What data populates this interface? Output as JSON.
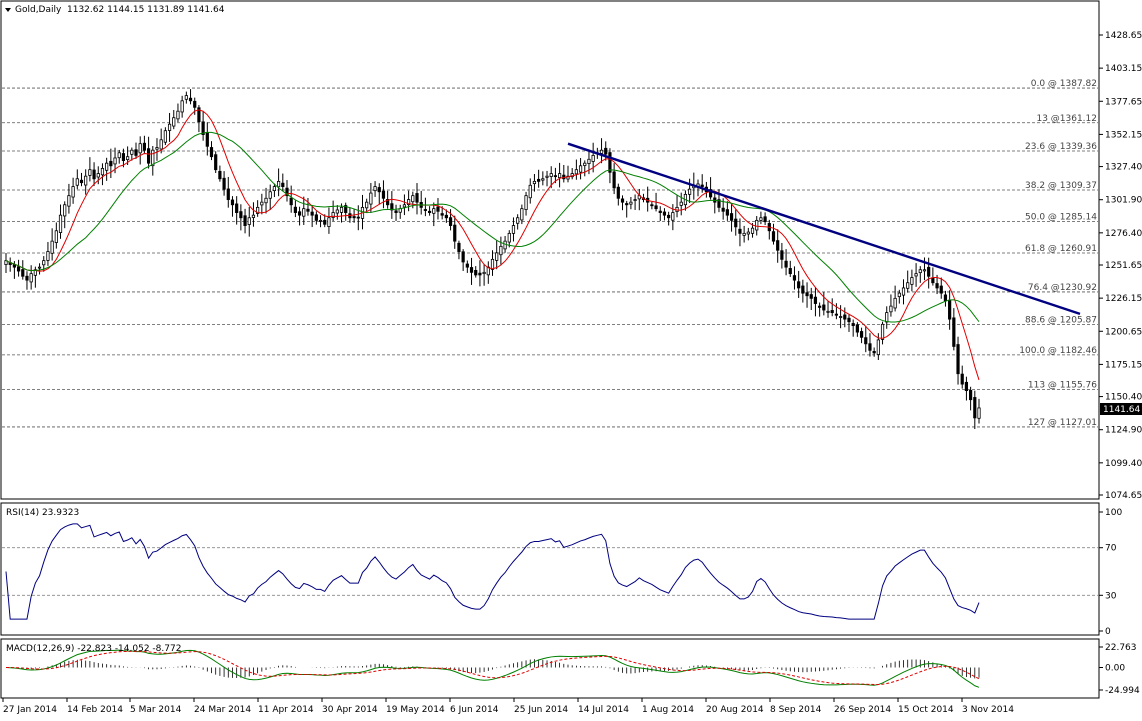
{
  "window": {
    "title": "Gold,Daily",
    "ohlc": "1132.62 1144.15 1131.89 1141.64"
  },
  "chart_data": [
    {
      "type": "candlestick",
      "title": "Gold,Daily",
      "ohlc_last": {
        "open": 1132.62,
        "high": 1144.15,
        "low": 1131.89,
        "close": 1141.64
      },
      "current_price_label": "1141.64",
      "ylim": [
        1070,
        1450
      ],
      "yticks": [
        "1428.65",
        "1403.15",
        "1377.65",
        "1352.15",
        "1327.40",
        "1301.90",
        "1276.40",
        "1251.65",
        "1226.15",
        "1200.65",
        "1175.15",
        "1150.40",
        "1124.90",
        "1099.40",
        "1074.65"
      ],
      "ytick_values": [
        1428.65,
        1403.15,
        1377.65,
        1352.15,
        1327.4,
        1301.9,
        1276.4,
        1251.65,
        1226.15,
        1200.65,
        1175.15,
        1150.4,
        1124.9,
        1099.4,
        1074.65
      ],
      "x_dates": [
        "27 Jan 2014",
        "14 Feb 2014",
        "5 Mar 2014",
        "24 Mar 2014",
        "11 Apr 2014",
        "30 Apr 2014",
        "19 May 2014",
        "6 Jun 2014",
        "25 Jun 2014",
        "14 Jul 2014",
        "1 Aug 2014",
        "20 Aug 2014",
        "8 Sep 2014",
        "26 Sep 2014",
        "15 Oct 2014",
        "3 Nov 2014"
      ],
      "fibonacci_levels": [
        {
          "label": "0.0 @ 1387.82",
          "value": 1387.82
        },
        {
          "label": "13 @1361.12",
          "value": 1361.12
        },
        {
          "label": "23.6 @ 1339.36",
          "value": 1339.36
        },
        {
          "label": "38.2 @ 1309.37",
          "value": 1309.37
        },
        {
          "label": "50.0 @ 1285.14",
          "value": 1285.14
        },
        {
          "label": "61.8 @ 1260.91",
          "value": 1260.91
        },
        {
          "label": "76.4 @1230.92",
          "value": 1230.92
        },
        {
          "label": "88.6 @ 1205.87",
          "value": 1205.87
        },
        {
          "label": "100.0 @ 1182.46",
          "value": 1182.46
        },
        {
          "label": "113 @ 1155.76",
          "value": 1155.76
        },
        {
          "label": "127 @ 1127.01",
          "value": 1127.01
        }
      ],
      "trendline": {
        "from": {
          "date": "10 Jul 2014",
          "value": 1345
        },
        "to": {
          "date": "12 Nov 2014",
          "value": 1214
        }
      },
      "closes": [
        1255,
        1252,
        1250,
        1247,
        1243,
        1240,
        1245,
        1248,
        1250,
        1255,
        1262,
        1270,
        1278,
        1290,
        1298,
        1305,
        1312,
        1318,
        1315,
        1320,
        1325,
        1318,
        1322,
        1326,
        1330,
        1328,
        1334,
        1338,
        1332,
        1335,
        1340,
        1336,
        1345,
        1340,
        1330,
        1340,
        1342,
        1348,
        1355,
        1360,
        1365,
        1370,
        1378,
        1382,
        1378,
        1373,
        1362,
        1352,
        1343,
        1335,
        1325,
        1318,
        1310,
        1302,
        1298,
        1292,
        1288,
        1282,
        1288,
        1290,
        1296,
        1300,
        1303,
        1308,
        1312,
        1316,
        1312,
        1305,
        1298,
        1292,
        1290,
        1295,
        1293,
        1290,
        1286,
        1286,
        1283,
        1288,
        1292,
        1294,
        1296,
        1292,
        1288,
        1288,
        1288,
        1296,
        1300,
        1307,
        1312,
        1308,
        1303,
        1298,
        1294,
        1292,
        1295,
        1298,
        1302,
        1305,
        1300,
        1296,
        1294,
        1292,
        1295,
        1293,
        1290,
        1288,
        1282,
        1270,
        1262,
        1254,
        1250,
        1246,
        1244,
        1244,
        1246,
        1250,
        1256,
        1261,
        1266,
        1270,
        1276,
        1282,
        1288,
        1295,
        1305,
        1313,
        1316,
        1316,
        1318,
        1320,
        1322,
        1320,
        1322,
        1318,
        1320,
        1322,
        1325,
        1328,
        1330,
        1333,
        1336,
        1338,
        1340,
        1337,
        1323,
        1311,
        1303,
        1300,
        1298,
        1300,
        1302,
        1305,
        1302,
        1300,
        1298,
        1295,
        1292,
        1290,
        1288,
        1292,
        1296,
        1300,
        1306,
        1310,
        1313,
        1314,
        1312,
        1308,
        1304,
        1300,
        1296,
        1293,
        1290,
        1286,
        1281,
        1276,
        1276,
        1277,
        1280,
        1286,
        1288,
        1285,
        1278,
        1270,
        1263,
        1256,
        1250,
        1245,
        1240,
        1234,
        1230,
        1228,
        1226,
        1222,
        1219,
        1217,
        1216,
        1215,
        1213,
        1212,
        1210,
        1208,
        1205,
        1200,
        1196,
        1191,
        1186,
        1184,
        1194,
        1206,
        1215,
        1220,
        1226,
        1230,
        1234,
        1238,
        1242,
        1245,
        1248,
        1248,
        1243,
        1238,
        1234,
        1230,
        1224,
        1210,
        1189,
        1168,
        1160,
        1155,
        1148,
        1134,
        1141.64
      ],
      "sma_red_label": "moving average (red)",
      "sma_green_label": "moving average (green)",
      "rsi": {
        "label": "RSI(14) 23.9323",
        "value": 23.9323,
        "ylim": [
          0,
          100
        ],
        "levels": [
          70,
          30
        ],
        "ticks": [
          "100",
          "70",
          "30",
          "0"
        ],
        "tick_values": [
          100,
          70,
          30,
          0
        ]
      },
      "macd": {
        "label": "MACD(12,26,9) -22.823 -14.052 -8.772",
        "ticks": [
          "22.763",
          "0.00",
          "-24.994"
        ],
        "tick_values": [
          22.763,
          0,
          -24.994
        ],
        "ylim": [
          -29,
          27
        ]
      }
    }
  ]
}
